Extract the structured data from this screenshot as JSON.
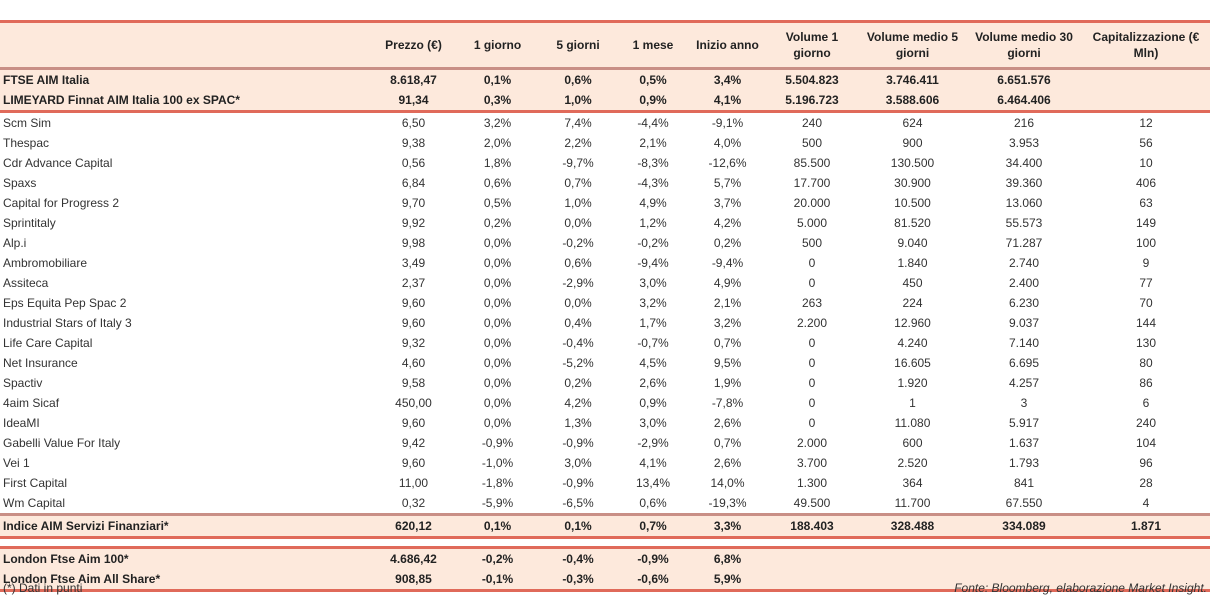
{
  "headers": [
    "",
    "Prezzo (€)",
    "1 giorno",
    "5 giorni",
    "1 mese",
    "Inizio anno",
    "Volume 1 giorno",
    "Volume medio 5 giorni",
    "Volume medio 30 giorni",
    "Capitalizzazione (€ Mln)"
  ],
  "index_rows": [
    [
      "FTSE AIM Italia",
      "8.618,47",
      "0,1%",
      "0,6%",
      "0,5%",
      "3,4%",
      "5.504.823",
      "3.746.411",
      "6.651.576",
      ""
    ],
    [
      "LIMEYARD Finnat AIM Italia 100 ex SPAC*",
      "91,34",
      "0,3%",
      "1,0%",
      "0,9%",
      "4,1%",
      "5.196.723",
      "3.588.606",
      "6.464.406",
      ""
    ]
  ],
  "rows": [
    [
      "Scm Sim",
      "6,50",
      "3,2%",
      "7,4%",
      "-4,4%",
      "-9,1%",
      "240",
      "624",
      "216",
      "12"
    ],
    [
      "Thespac",
      "9,38",
      "2,0%",
      "2,2%",
      "2,1%",
      "4,0%",
      "500",
      "900",
      "3.953",
      "56"
    ],
    [
      "Cdr Advance Capital",
      "0,56",
      "1,8%",
      "-9,7%",
      "-8,3%",
      "-12,6%",
      "85.500",
      "130.500",
      "34.400",
      "10"
    ],
    [
      "Spaxs",
      "6,84",
      "0,6%",
      "0,7%",
      "-4,3%",
      "5,7%",
      "17.700",
      "30.900",
      "39.360",
      "406"
    ],
    [
      "Capital for Progress 2",
      "9,70",
      "0,5%",
      "1,0%",
      "4,9%",
      "3,7%",
      "20.000",
      "10.500",
      "13.060",
      "63"
    ],
    [
      "Sprintitaly",
      "9,92",
      "0,2%",
      "0,0%",
      "1,2%",
      "4,2%",
      "5.000",
      "81.520",
      "55.573",
      "149"
    ],
    [
      "Alp.i",
      "9,98",
      "0,0%",
      "-0,2%",
      "-0,2%",
      "0,2%",
      "500",
      "9.040",
      "71.287",
      "100"
    ],
    [
      "Ambromobiliare",
      "3,49",
      "0,0%",
      "0,6%",
      "-9,4%",
      "-9,4%",
      "0",
      "1.840",
      "2.740",
      "9"
    ],
    [
      "Assiteca",
      "2,37",
      "0,0%",
      "-2,9%",
      "3,0%",
      "4,9%",
      "0",
      "450",
      "2.400",
      "77"
    ],
    [
      "Eps Equita Pep Spac 2",
      "9,60",
      "0,0%",
      "0,0%",
      "3,2%",
      "2,1%",
      "263",
      "224",
      "6.230",
      "70"
    ],
    [
      "Industrial Stars of Italy 3",
      "9,60",
      "0,0%",
      "0,4%",
      "1,7%",
      "3,2%",
      "2.200",
      "12.960",
      "9.037",
      "144"
    ],
    [
      "Life Care Capital",
      "9,32",
      "0,0%",
      "-0,4%",
      "-0,7%",
      "0,7%",
      "0",
      "4.240",
      "7.140",
      "130"
    ],
    [
      "Net Insurance",
      "4,60",
      "0,0%",
      "-5,2%",
      "4,5%",
      "9,5%",
      "0",
      "16.605",
      "6.695",
      "80"
    ],
    [
      "Spactiv",
      "9,58",
      "0,0%",
      "0,2%",
      "2,6%",
      "1,9%",
      "0",
      "1.920",
      "4.257",
      "86"
    ],
    [
      "4aim Sicaf",
      "450,00",
      "0,0%",
      "4,2%",
      "0,9%",
      "-7,8%",
      "0",
      "1",
      "3",
      "6"
    ],
    [
      "IdeaMI",
      "9,60",
      "0,0%",
      "1,3%",
      "3,0%",
      "2,6%",
      "0",
      "11.080",
      "5.917",
      "240"
    ],
    [
      "Gabelli Value For Italy",
      "9,42",
      "-0,9%",
      "-0,9%",
      "-2,9%",
      "0,7%",
      "2.000",
      "600",
      "1.637",
      "104"
    ],
    [
      "Vei 1",
      "9,60",
      "-1,0%",
      "3,0%",
      "4,1%",
      "2,6%",
      "3.700",
      "2.520",
      "1.793",
      "96"
    ],
    [
      "First Capital",
      "11,00",
      "-1,8%",
      "-0,9%",
      "13,4%",
      "14,0%",
      "1.300",
      "364",
      "841",
      "28"
    ],
    [
      "Wm Capital",
      "0,32",
      "-5,9%",
      "-6,5%",
      "0,6%",
      "-19,3%",
      "49.500",
      "11.700",
      "67.550",
      "4"
    ]
  ],
  "summary_row": [
    "Indice AIM Servizi Finanziari*",
    "620,12",
    "0,1%",
    "0,1%",
    "0,7%",
    "3,3%",
    "188.403",
    "328.488",
    "334.089",
    "1.871"
  ],
  "london_rows": [
    [
      "London Ftse Aim 100*",
      "4.686,42",
      "-0,2%",
      "-0,4%",
      "-0,9%",
      "6,8%",
      "",
      "",
      "",
      ""
    ],
    [
      "London Ftse Aim All Share*",
      "908,85",
      "-0,1%",
      "-0,3%",
      "-0,6%",
      "5,9%",
      "",
      "",
      "",
      ""
    ]
  ],
  "footnote": "(*) Dati in punti",
  "source": "Fonte: Bloomberg, elaborazione Market Insight."
}
